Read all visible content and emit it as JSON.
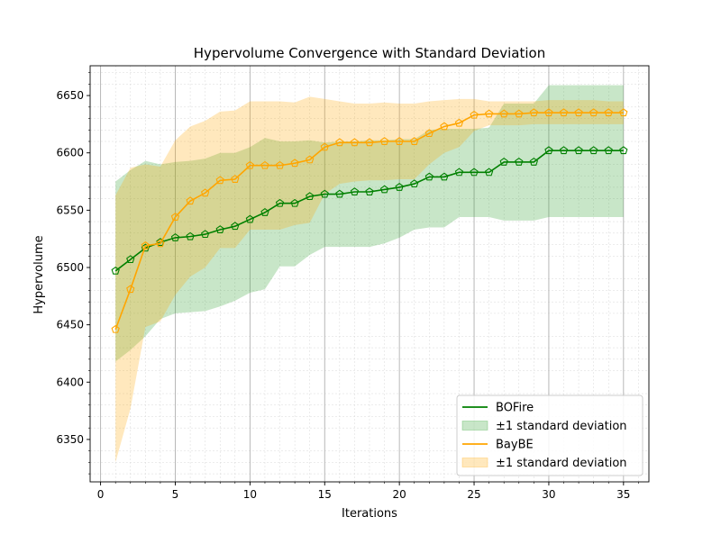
{
  "chart_data": {
    "type": "line",
    "title": "Hypervolume Convergence with Standard Deviation",
    "xlabel": "Iterations",
    "ylabel": "Hypervolume",
    "xlim": [
      -0.7,
      36.7
    ],
    "ylim": [
      6313,
      6676
    ],
    "x_ticks": [
      0,
      5,
      10,
      15,
      20,
      25,
      30,
      35
    ],
    "y_ticks": [
      6350,
      6400,
      6450,
      6500,
      6550,
      6600,
      6650
    ],
    "grid": true,
    "legend_position": "bottom-right",
    "x": [
      1,
      2,
      3,
      4,
      5,
      6,
      7,
      8,
      9,
      10,
      11,
      12,
      13,
      14,
      15,
      16,
      17,
      18,
      19,
      20,
      21,
      22,
      23,
      24,
      25,
      26,
      27,
      28,
      29,
      30,
      31,
      32,
      33,
      34,
      35
    ],
    "series": [
      {
        "name": "BOFire",
        "band_label": "±1 standard deviation",
        "color": "#008000",
        "band_color": "#2ca02c",
        "marker": "pentagon",
        "values": [
          6497,
          6507,
          6517,
          6522,
          6526,
          6527,
          6529,
          6533,
          6536,
          6542,
          6548,
          6556,
          6556,
          6562,
          6564,
          6564,
          6566,
          6566,
          6568,
          6570,
          6573,
          6579,
          6579,
          6583,
          6583,
          6583,
          6592,
          6592,
          6592,
          6602,
          6602,
          6602,
          6602,
          6602,
          6602
        ],
        "upper": [
          6575,
          6585,
          6593,
          6590,
          6592,
          6593,
          6595,
          6600,
          6600,
          6605,
          6613,
          6610,
          6610,
          6611,
          6609,
          6610,
          6610,
          6611,
          6611,
          6612,
          6612,
          6620,
          6621,
          6621,
          6621,
          6622,
          6643,
          6643,
          6643,
          6659,
          6659,
          6659,
          6659,
          6659,
          6659
        ],
        "lower": [
          6418,
          6428,
          6440,
          6455,
          6460,
          6461,
          6462,
          6466,
          6471,
          6478,
          6481,
          6501,
          6501,
          6511,
          6518,
          6518,
          6518,
          6518,
          6521,
          6526,
          6533,
          6535,
          6535,
          6544,
          6544,
          6544,
          6541,
          6541,
          6541,
          6544,
          6544,
          6544,
          6544,
          6544,
          6544
        ]
      },
      {
        "name": "BayBE",
        "band_label": "±1 standard deviation",
        "color": "#ffa500",
        "band_color": "#ffa500",
        "marker": "pentagon",
        "values": [
          6446,
          6481,
          6519,
          6521,
          6544,
          6558,
          6565,
          6576,
          6577,
          6589,
          6589,
          6589,
          6591,
          6594,
          6605,
          6609,
          6609,
          6609,
          6610,
          6610,
          6610,
          6617,
          6623,
          6626,
          6633,
          6634,
          6634,
          6634,
          6635,
          6635,
          6635,
          6635,
          6635,
          6635,
          6635
        ],
        "upper": [
          6563,
          6587,
          6590,
          6588,
          6611,
          6623,
          6628,
          6636,
          6637,
          6645,
          6645,
          6645,
          6644,
          6649,
          6647,
          6645,
          6643,
          6643,
          6644,
          6643,
          6643,
          6645,
          6646,
          6647,
          6647,
          6645,
          6645,
          6645,
          6645,
          6646,
          6646,
          6646,
          6646,
          6645,
          6645
        ],
        "lower": [
          6330,
          6377,
          6448,
          6453,
          6476,
          6492,
          6500,
          6517,
          6517,
          6533,
          6533,
          6533,
          6537,
          6539,
          6564,
          6573,
          6575,
          6576,
          6576,
          6577,
          6577,
          6590,
          6600,
          6605,
          6619,
          6624,
          6624,
          6624,
          6625,
          6625,
          6625,
          6625,
          6625,
          6625,
          6625
        ]
      }
    ]
  }
}
